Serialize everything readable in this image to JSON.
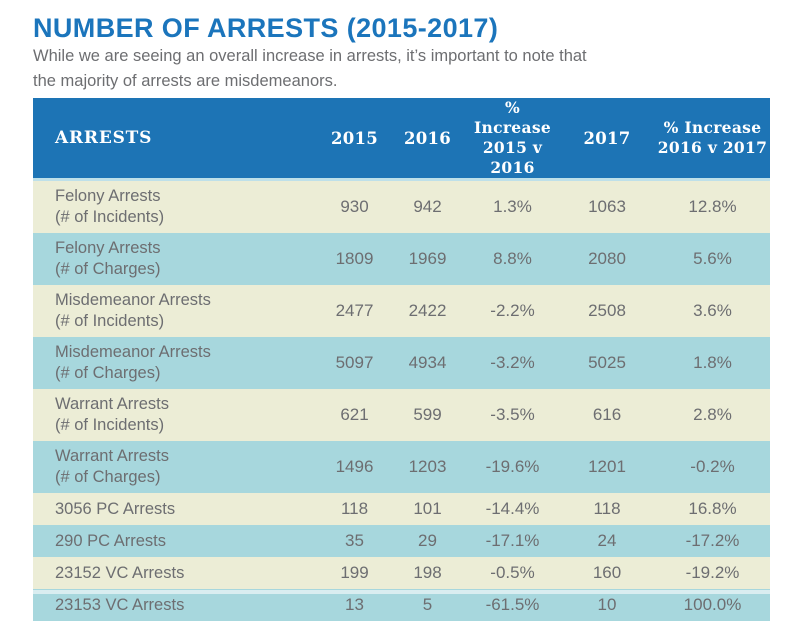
{
  "page": {
    "title": "NUMBER OF ARRESTS (2015-2017)",
    "subtitle_line1": "While we are seeing an overall increase in arrests, it’s important to note that",
    "subtitle_line2": "the majority of arrests are misdemeanors."
  },
  "colors": {
    "title_blue": "#1b75bc",
    "header_blue": "#1d74b5",
    "header_text": "#ffffff",
    "header_underline": "#bee0e9",
    "row_cream": "#ecedd6",
    "row_blue": "#a7d7dd",
    "body_text_gray": "#6d6e71"
  },
  "table": {
    "headers": {
      "arrests": "ARRESTS",
      "y2015": "2015",
      "y2016": "2016",
      "inc1_line1": "% Increase",
      "inc1_line2": "2015 v 2016",
      "y2017": "2017",
      "inc2_line1": "% Increase",
      "inc2_line2": "2016 v 2017"
    },
    "rows": [
      {
        "label1": "Felony Arrests",
        "label2": "(# of Incidents)",
        "y2015": "930",
        "y2016": "942",
        "inc1": "1.3%",
        "y2017": "1063",
        "inc2": "12.8%"
      },
      {
        "label1": "Felony Arrests",
        "label2": "(# of Charges)",
        "y2015": "1809",
        "y2016": "1969",
        "inc1": "8.8%",
        "y2017": "2080",
        "inc2": "5.6%"
      },
      {
        "label1": "Misdemeanor Arrests",
        "label2": "(# of Incidents)",
        "y2015": "2477",
        "y2016": "2422",
        "inc1": "-2.2%",
        "y2017": "2508",
        "inc2": "3.6%"
      },
      {
        "label1": "Misdemeanor Arrests",
        "label2": "(# of Charges)",
        "y2015": "5097",
        "y2016": "4934",
        "inc1": "-3.2%",
        "y2017": "5025",
        "inc2": "1.8%"
      },
      {
        "label1": "Warrant Arrests",
        "label2": "(# of Incidents)",
        "y2015": "621",
        "y2016": "599",
        "inc1": "-3.5%",
        "y2017": "616",
        "inc2": "2.8%"
      },
      {
        "label1": "Warrant Arrests",
        "label2": "(# of Charges)",
        "y2015": "1496",
        "y2016": "1203",
        "inc1": "-19.6%",
        "y2017": "1201",
        "inc2": "-0.2%"
      },
      {
        "label1": "3056 PC Arrests",
        "label2": "",
        "y2015": "118",
        "y2016": "101",
        "inc1": "-14.4%",
        "y2017": "118",
        "inc2": "16.8%"
      },
      {
        "label1": "290 PC Arrests",
        "label2": "",
        "y2015": "35",
        "y2016": "29",
        "inc1": "-17.1%",
        "y2017": "24",
        "inc2": "-17.2%"
      },
      {
        "label1": "23152 VC Arrests",
        "label2": "",
        "y2015": "199",
        "y2016": "198",
        "inc1": "-0.5%",
        "y2017": "160",
        "inc2": "-19.2%"
      },
      {
        "label1": "23153 VC Arrests",
        "label2": "",
        "y2015": "13",
        "y2016": "5",
        "inc1": "-61.5%",
        "y2017": "10",
        "inc2": "100.0%"
      }
    ]
  },
  "chart_data": {
    "type": "table",
    "title": "NUMBER OF ARRESTS (2015-2017)",
    "subtitle": "While we are seeing an overall increase in arrests, it’s important to note that the majority of arrests are misdemeanors.",
    "columns": [
      "ARRESTS",
      "2015",
      "2016",
      "% Increase 2015 v 2016",
      "2017",
      "% Increase 2016 v 2017"
    ],
    "rows": [
      [
        "Felony Arrests (# of Incidents)",
        930,
        942,
        "1.3%",
        1063,
        "12.8%"
      ],
      [
        "Felony Arrests (# of Charges)",
        1809,
        1969,
        "8.8%",
        2080,
        "5.6%"
      ],
      [
        "Misdemeanor Arrests (# of Incidents)",
        2477,
        2422,
        "-2.2%",
        2508,
        "3.6%"
      ],
      [
        "Misdemeanor Arrests (# of Charges)",
        5097,
        4934,
        "-3.2%",
        5025,
        "1.8%"
      ],
      [
        "Warrant Arrests (# of Incidents)",
        621,
        599,
        "-3.5%",
        616,
        "2.8%"
      ],
      [
        "Warrant Arrests (# of Charges)",
        1496,
        1203,
        "-19.6%",
        1201,
        "-0.2%"
      ],
      [
        "3056 PC Arrests",
        118,
        101,
        "-14.4%",
        118,
        "16.8%"
      ],
      [
        "290 PC Arrests",
        35,
        29,
        "-17.1%",
        24,
        "-17.2%"
      ],
      [
        "23152 VC Arrests",
        199,
        198,
        "-0.5%",
        160,
        "-19.2%"
      ],
      [
        "23153 VC Arrests",
        13,
        5,
        "-61.5%",
        10,
        "100.0%"
      ]
    ]
  }
}
